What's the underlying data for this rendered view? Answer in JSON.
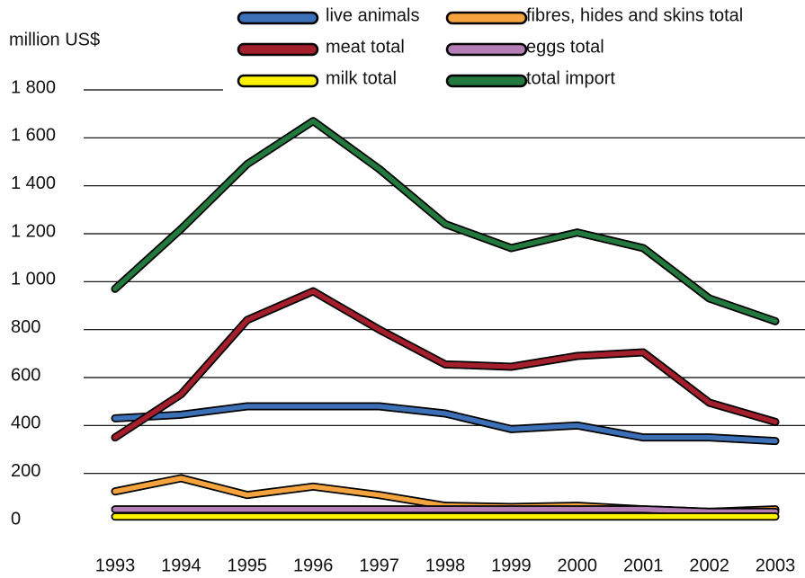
{
  "chart_data": {
    "type": "line",
    "y_axis_label": "million US$",
    "categories": [
      "1993",
      "1994",
      "1995",
      "1996",
      "1997",
      "1998",
      "1999",
      "2000",
      "2001",
      "2002",
      "2003"
    ],
    "ylim": [
      0,
      1800
    ],
    "yticks": [
      0,
      200,
      400,
      600,
      800,
      {
        "value": 1000,
        "label": "1 000"
      },
      {
        "value": 1200,
        "label": "1 200"
      },
      {
        "value": 1400,
        "label": "1 400"
      },
      {
        "value": 1600,
        "label": "1 600"
      },
      {
        "value": 1800,
        "label": "1 800"
      }
    ],
    "grid": true,
    "legend": "top",
    "series": [
      {
        "name": "live animals",
        "color": "#3b6fb6",
        "values": [
          430,
          445,
          480,
          480,
          480,
          450,
          385,
          400,
          350,
          350,
          335
        ]
      },
      {
        "name": "fibres, hides and skins total",
        "color": "#f5a33f",
        "values": [
          125,
          180,
          110,
          145,
          110,
          65,
          60,
          65,
          50,
          40,
          50
        ]
      },
      {
        "name": "meat total",
        "color": "#a31f2b",
        "values": [
          350,
          530,
          840,
          960,
          800,
          655,
          645,
          690,
          705,
          495,
          415
        ]
      },
      {
        "name": "eggs total",
        "color": "#b47db6",
        "values": [
          50,
          50,
          50,
          50,
          50,
          50,
          50,
          50,
          50,
          40,
          40
        ]
      },
      {
        "name": "milk total",
        "color": "#fff200",
        "values": [
          20,
          20,
          20,
          20,
          20,
          20,
          20,
          20,
          20,
          20,
          20
        ]
      },
      {
        "name": "total import",
        "color": "#23793d",
        "values": [
          970,
          1220,
          1490,
          1670,
          1470,
          1240,
          1140,
          1205,
          1140,
          930,
          835
        ]
      }
    ]
  }
}
